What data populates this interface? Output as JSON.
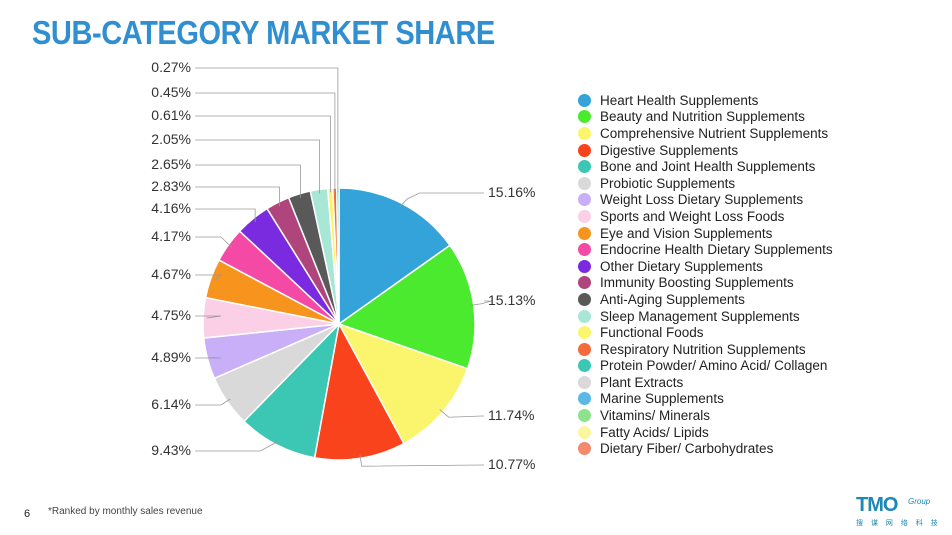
{
  "page": {
    "title": "SUB-CATEGORY MARKET SHARE",
    "page_number": "6",
    "footnote": "*Ranked by monthly sales revenue"
  },
  "logo": {
    "name": "TMO",
    "group": "Group",
    "sub": "搜 谋 网 络 科 技"
  },
  "chart_data": {
    "type": "pie",
    "title": "",
    "slices": [
      {
        "label": "Heart Health Supplements",
        "value": 15.16,
        "value_label": "15.16%",
        "color": "#33a3d9"
      },
      {
        "label": "Beauty and Nutrition Supplements",
        "value": 15.13,
        "value_label": "15.13%",
        "color": "#4bea2e"
      },
      {
        "label": "Comprehensive Nutrient Supplements",
        "value": 11.74,
        "value_label": "11.74%",
        "color": "#fbf56d"
      },
      {
        "label": "Digestive Supplements",
        "value": 10.77,
        "value_label": "10.77%",
        "color": "#f9431d"
      },
      {
        "label": "Bone and Joint Health Supplements",
        "value": 9.43,
        "value_label": "9.43%",
        "color": "#3cc6b4"
      },
      {
        "label": "Probiotic Supplements",
        "value": 6.14,
        "value_label": "6.14%",
        "color": "#d9d9d9"
      },
      {
        "label": "Weight Loss Dietary Supplements",
        "value": 4.89,
        "value_label": "4.89%",
        "color": "#c9aff7"
      },
      {
        "label": "Sports and Weight Loss Foods",
        "value": 4.75,
        "value_label": "4.75%",
        "color": "#fbcfe6"
      },
      {
        "label": "Eye and Vision Supplements",
        "value": 4.67,
        "value_label": "4.67%",
        "color": "#f7941d"
      },
      {
        "label": "Endocrine Health Dietary Supplements",
        "value": 4.17,
        "value_label": "4.17%",
        "color": "#f44aa6"
      },
      {
        "label": "Other Dietary Supplements",
        "value": 4.16,
        "value_label": "4.16%",
        "color": "#7a2be0"
      },
      {
        "label": "Immunity Boosting Supplements",
        "value": 2.83,
        "value_label": "2.83%",
        "color": "#b0457d"
      },
      {
        "label": "Anti-Aging Supplements",
        "value": 2.65,
        "value_label": "2.65%",
        "color": "#595959"
      },
      {
        "label": "Sleep Management Supplements",
        "value": 2.05,
        "value_label": "2.05%",
        "color": "#a8e6d6"
      },
      {
        "label": "Functional Foods",
        "value": 0.61,
        "value_label": "0.61%",
        "color": "#fbf56d"
      },
      {
        "label": "Respiratory Nutrition Supplements",
        "value": 0.45,
        "value_label": "0.45%",
        "color": "#f36b3b"
      },
      {
        "label": "Protein Powder/ Amino Acid/ Collagen",
        "value": 0.27,
        "value_label": "0.27%",
        "color": "#3cc6b4"
      },
      {
        "label": "Plant Extracts",
        "value": 0,
        "value_label": "",
        "color": "#d9d9d9"
      },
      {
        "label": "Marine Supplements",
        "value": 0,
        "value_label": "",
        "color": "#5ab8e6"
      },
      {
        "label": "Vitamins/ Minerals",
        "value": 0,
        "value_label": "",
        "color": "#8be48b"
      },
      {
        "label": "Fatty Acids/ Lipids",
        "value": 0,
        "value_label": "",
        "color": "#fbf7a0"
      },
      {
        "label": "Dietary Fiber/ Carbohydrates",
        "value": 0,
        "value_label": "",
        "color": "#f28a6b"
      }
    ],
    "legend_position": "right"
  }
}
